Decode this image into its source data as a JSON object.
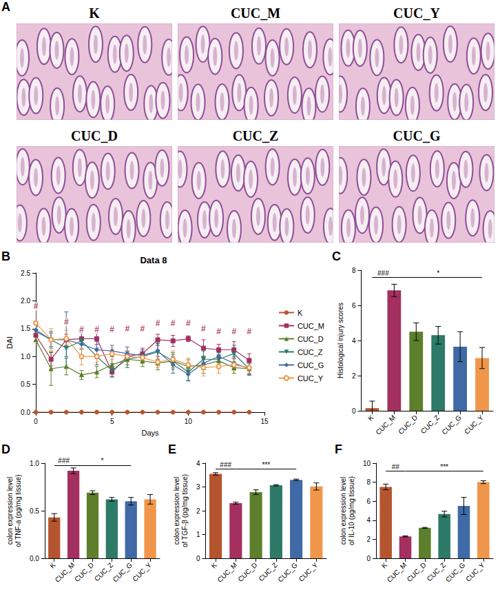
{
  "images": {
    "panel": "A",
    "labels": [
      "K",
      "CUC_M",
      "CUC_Y",
      "CUC_D",
      "CUC_Z",
      "CUC_G"
    ]
  },
  "chart_data": [
    {
      "panel": "B",
      "type": "line",
      "title": "Data 8",
      "x_label": "Days",
      "y_label": "DAI",
      "xlim": [
        0,
        15
      ],
      "xticks": [
        0,
        5,
        10,
        15
      ],
      "ylim": [
        0,
        2.5
      ],
      "yticks": [
        {
          "value": 0,
          "label": "0.0"
        },
        {
          "value": 0.5,
          "label": "0.5"
        },
        {
          "value": 1,
          "label": "1.0"
        },
        {
          "value": 1.5,
          "label": "1.5"
        },
        {
          "value": 2,
          "label": "2.0"
        },
        {
          "value": 2.5,
          "label": "2.5"
        }
      ],
      "grid": false,
      "legend": "right",
      "x": [
        0,
        1,
        2,
        3,
        4,
        5,
        6,
        7,
        8,
        9,
        10,
        11,
        12,
        13,
        14
      ],
      "series": [
        {
          "name": "K",
          "color": "#b5552f",
          "marker": "circle",
          "values": [
            0,
            0,
            0,
            0,
            0,
            0,
            0,
            0,
            0,
            0,
            0,
            0,
            0,
            0,
            0
          ],
          "errors": [
            0,
            0,
            0,
            0,
            0,
            0,
            0,
            0,
            0,
            0,
            0,
            0,
            0,
            0,
            0
          ]
        },
        {
          "name": "CUC_M",
          "color": "#a3305f",
          "marker": "square",
          "values": [
            1.38,
            0.95,
            1.3,
            1.32,
            1.32,
            0.72,
            1.0,
            1.05,
            1.3,
            1.28,
            1.32,
            1.15,
            1.12,
            1.12,
            0.93
          ],
          "errors": [
            0.15,
            0.12,
            0.1,
            0.1,
            0.1,
            0.08,
            0.08,
            0.1,
            0.1,
            0.1,
            0.05,
            0.15,
            0.1,
            0.15,
            0.12
          ]
        },
        {
          "name": "CUC_D",
          "color": "#5d7f2b",
          "marker": "triangle",
          "values": [
            1.3,
            0.78,
            0.82,
            0.67,
            0.72,
            0.85,
            0.95,
            0.92,
            0.88,
            0.92,
            0.82,
            0.85,
            0.92,
            0.8,
            0.78
          ],
          "errors": [
            0.1,
            0.3,
            0.15,
            0.08,
            0.1,
            0.15,
            0.1,
            0.1,
            0.12,
            0.15,
            0.12,
            0.15,
            0.12,
            0.1,
            0.1
          ]
        },
        {
          "name": "CUC_Z",
          "color": "#2c7a67",
          "marker": "triangle-down",
          "values": [
            1.45,
            1.3,
            1.15,
            1.28,
            1.0,
            0.75,
            0.95,
            1.0,
            1.08,
            0.92,
            0.72,
            0.95,
            0.95,
            1.05,
            0.78
          ],
          "errors": [
            0.1,
            0.15,
            0.15,
            0.15,
            0.15,
            0.12,
            0.15,
            0.12,
            0.15,
            0.12,
            0.15,
            0.15,
            0.12,
            0.15,
            0.12
          ]
        },
        {
          "name": "CUC_G",
          "color": "#3f6aa6",
          "marker": "diamond",
          "values": [
            1.48,
            1.3,
            1.3,
            1.22,
            1.12,
            1.1,
            1.05,
            1.02,
            1.1,
            0.85,
            0.68,
            0.88,
            1.0,
            0.88,
            0.78
          ],
          "errors": [
            0.1,
            0.12,
            0.5,
            0.2,
            0.15,
            0.1,
            0.12,
            0.1,
            0.15,
            0.15,
            0.12,
            0.12,
            0.15,
            0.12,
            0.1
          ]
        },
        {
          "name": "CUC_Y",
          "color": "#f0964a",
          "marker": "circle-open",
          "values": [
            1.6,
            1.3,
            1.32,
            1.0,
            1.0,
            1.05,
            1.0,
            0.98,
            0.9,
            0.95,
            0.85,
            0.8,
            0.82,
            0.85,
            0.8
          ],
          "errors": [
            0.35,
            0.2,
            0.15,
            0.15,
            0.1,
            0.1,
            0.1,
            0.1,
            0.1,
            0.15,
            0.12,
            0.15,
            0.12,
            0.1,
            0.1
          ]
        }
      ],
      "annotations": [
        {
          "text": "#",
          "x": 0,
          "y": 1.9
        },
        {
          "text": "#",
          "x": 2,
          "y": 1.62
        },
        {
          "text": "#",
          "x": 3,
          "y": 1.48
        },
        {
          "text": "#",
          "x": 4,
          "y": 1.48
        },
        {
          "text": "#",
          "x": 5,
          "y": 1.48
        },
        {
          "text": "#",
          "x": 6,
          "y": 1.5
        },
        {
          "text": "#",
          "x": 7,
          "y": 1.5
        },
        {
          "text": "#",
          "x": 8,
          "y": 1.6
        },
        {
          "text": "#",
          "x": 9,
          "y": 1.6
        },
        {
          "text": "#",
          "x": 10,
          "y": 1.6
        },
        {
          "text": "#",
          "x": 11,
          "y": 1.5
        },
        {
          "text": "#",
          "x": 12,
          "y": 1.45
        },
        {
          "text": "#",
          "x": 13,
          "y": 1.45
        },
        {
          "text": "#",
          "x": 14,
          "y": 1.45
        }
      ]
    },
    {
      "panel": "C",
      "type": "bar",
      "y_label": "Histological injury scores",
      "categories": [
        "K",
        "CUC_M",
        "CUC_D",
        "CUC_Z",
        "CUC_G",
        "CUC_Y"
      ],
      "values": [
        0.15,
        6.85,
        4.5,
        4.3,
        3.65,
        3.0
      ],
      "errors": [
        0.4,
        0.35,
        0.5,
        0.5,
        0.85,
        0.6
      ],
      "colors": [
        "#b5552f",
        "#a3305f",
        "#5d7f2b",
        "#2c7a67",
        "#3f6aa6",
        "#f0964a"
      ],
      "ylim": [
        0,
        8
      ],
      "yticks": [
        0,
        2,
        4,
        6,
        8
      ],
      "grid": false,
      "annotations": [
        {
          "text": "###",
          "from": "K",
          "to": "CUC_M",
          "y": 7.6
        },
        {
          "text": "*",
          "from": "CUC_M",
          "to": "CUC_Y",
          "y": 7.6
        }
      ]
    },
    {
      "panel": "D",
      "type": "bar",
      "y_label": "colon expression level of TNF-a (pg/mg tissue)",
      "categories": [
        "K",
        "CUC_M",
        "CUC_D",
        "CUC_Z",
        "CUC_G",
        "CUC_Y"
      ],
      "values": [
        0.43,
        0.92,
        0.69,
        0.62,
        0.6,
        0.62
      ],
      "errors": [
        0.04,
        0.03,
        0.02,
        0.02,
        0.04,
        0.05
      ],
      "colors": [
        "#b5552f",
        "#a3305f",
        "#5d7f2b",
        "#2c7a67",
        "#3f6aa6",
        "#f0964a"
      ],
      "ylim": [
        0,
        1
      ],
      "yticks": [
        {
          "value": 0,
          "label": "0.0"
        },
        {
          "value": 0.5,
          "label": "0.5"
        },
        {
          "value": 1,
          "label": "1.0"
        }
      ],
      "grid": false,
      "annotations": [
        {
          "text": "###",
          "from": "K",
          "to": "CUC_M",
          "y": 0.98
        },
        {
          "text": "*",
          "from": "CUC_M",
          "to": "CUC_G",
          "y": 0.98
        }
      ]
    },
    {
      "panel": "E",
      "type": "bar",
      "y_label": "colon expression level of TGF-β (pg/mg tissue)",
      "categories": [
        "K",
        "CUC_M",
        "CUC_D",
        "CUC_Z",
        "CUC_G",
        "CUC_Y"
      ],
      "values": [
        3.55,
        2.32,
        2.78,
        3.07,
        3.3,
        3.02
      ],
      "errors": [
        0.05,
        0.04,
        0.1,
        0.03,
        0.03,
        0.15
      ],
      "colors": [
        "#b5552f",
        "#a3305f",
        "#5d7f2b",
        "#2c7a67",
        "#3f6aa6",
        "#f0964a"
      ],
      "ylim": [
        0,
        4
      ],
      "yticks": [
        0,
        1,
        2,
        3,
        4
      ],
      "grid": false,
      "annotations": [
        {
          "text": "###",
          "from": "K",
          "to": "CUC_M",
          "y": 3.75
        },
        {
          "text": "***",
          "from": "CUC_M",
          "to": "CUC_G",
          "y": 3.75
        }
      ]
    },
    {
      "panel": "F",
      "type": "bar",
      "y_label": "colon expression level of IL-10 (pg/mg tissue)",
      "categories": [
        "K",
        "CUC_M",
        "CUC_D",
        "CUC_Z",
        "CUC_G",
        "CUC_Y"
      ],
      "values": [
        7.5,
        2.3,
        3.2,
        4.65,
        5.5,
        8.0
      ],
      "errors": [
        0.3,
        0.05,
        0.05,
        0.3,
        0.9,
        0.15
      ],
      "colors": [
        "#b5552f",
        "#a3305f",
        "#5d7f2b",
        "#2c7a67",
        "#3f6aa6",
        "#f0964a"
      ],
      "ylim": [
        0,
        10
      ],
      "yticks": [
        0,
        2,
        4,
        6,
        8,
        10
      ],
      "grid": false,
      "annotations": [
        {
          "text": "##",
          "from": "K",
          "to": "CUC_M",
          "y": 9.2
        },
        {
          "text": "***",
          "from": "CUC_M",
          "to": "CUC_Y",
          "y": 9.2
        }
      ]
    }
  ]
}
